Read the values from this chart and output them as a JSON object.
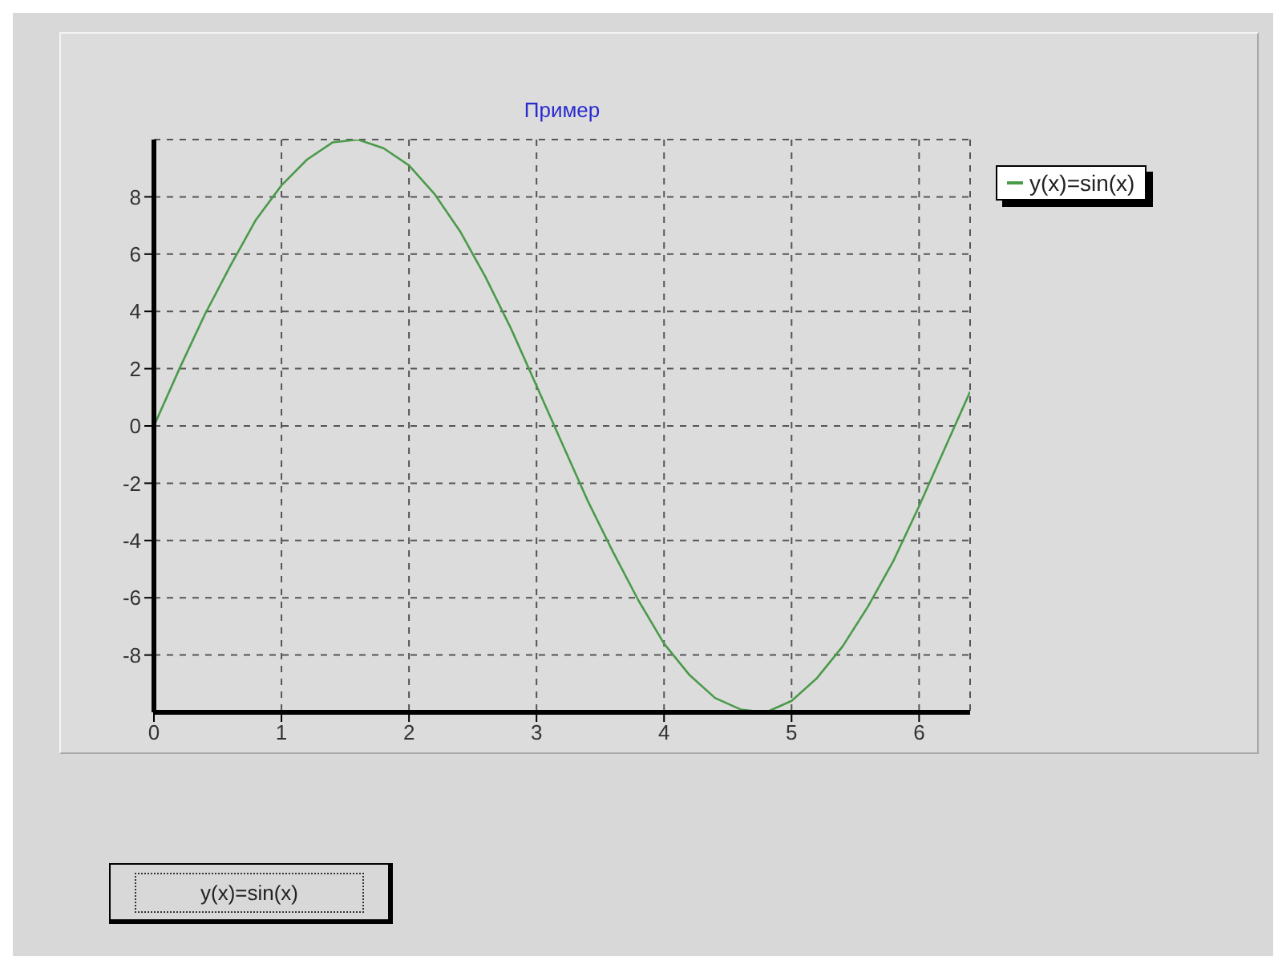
{
  "chart_data": {
    "type": "line",
    "title": "Пример",
    "x": [
      0,
      0.2,
      0.4,
      0.6,
      0.8,
      1.0,
      1.2,
      1.4,
      1.6,
      1.8,
      2.0,
      2.2,
      2.4,
      2.6,
      2.8,
      3.0,
      3.2,
      3.4,
      3.6,
      3.8,
      4.0,
      4.2,
      4.4,
      4.6,
      4.8,
      5.0,
      5.2,
      5.4,
      5.6,
      5.8,
      6.0,
      6.2,
      6.4
    ],
    "series": [
      {
        "name": "y(x)=sin(x)",
        "color": "#4a9a4a",
        "values": [
          0,
          2.0,
          3.9,
          5.6,
          7.2,
          8.4,
          9.3,
          9.9,
          10.0,
          9.7,
          9.1,
          8.1,
          6.8,
          5.2,
          3.4,
          1.4,
          -0.6,
          -2.6,
          -4.4,
          -6.1,
          -7.6,
          -8.7,
          -9.5,
          -9.9,
          -10.0,
          -9.6,
          -8.8,
          -7.7,
          -6.3,
          -4.7,
          -2.8,
          -0.8,
          1.2
        ]
      }
    ],
    "xlim": [
      0,
      6.4
    ],
    "xticks": [
      0,
      1,
      2,
      3,
      4,
      5,
      6
    ],
    "ylim": [
      -10,
      10
    ],
    "yticks": [
      -8,
      -6,
      -4,
      -2,
      0,
      2,
      4,
      6,
      8
    ],
    "grid": true,
    "legend": "top right",
    "marker": "none",
    "line_style": "solid",
    "annotations": [
      "y(x)=sin(x)"
    ]
  }
}
